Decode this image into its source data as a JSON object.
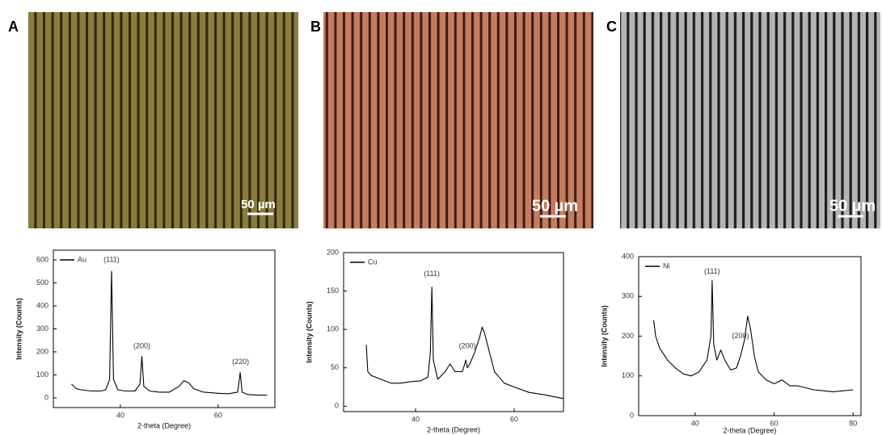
{
  "panels": [
    {
      "label": "A",
      "scale_bar": "50 µm"
    },
    {
      "label": "B",
      "scale_bar": "50 µm"
    },
    {
      "label": "C",
      "scale_bar": "50 µm"
    }
  ],
  "chart_data": [
    {
      "type": "line",
      "xlabel": "2-theta (Degree)",
      "ylabel": "Intensity (Counts)",
      "xlim": [
        26.3,
        71.6
      ],
      "ylim": [
        -42,
        642
      ],
      "xticks": [
        40,
        60
      ],
      "yticks": [
        0,
        100,
        200,
        300,
        400,
        500,
        600
      ],
      "x": [
        30,
        31,
        32,
        34,
        36,
        37,
        37.8,
        38.2,
        38.6,
        39.5,
        41,
        43,
        44,
        44.4,
        44.8,
        46,
        48,
        50,
        52,
        53,
        54,
        55,
        57,
        60,
        62,
        64,
        64.5,
        64.9,
        66,
        68,
        70
      ],
      "series": [
        {
          "name": "Au",
          "color": "#000000",
          "values": [
            60,
            40,
            35,
            30,
            30,
            35,
            80,
            550,
            80,
            35,
            30,
            30,
            60,
            180,
            50,
            30,
            25,
            25,
            50,
            75,
            65,
            40,
            25,
            20,
            18,
            25,
            110,
            25,
            15,
            12,
            12
          ]
        }
      ],
      "annotations": [
        {
          "text": "(111)",
          "x": 38.2,
          "y": 600
        },
        {
          "text": "(200)",
          "x": 44.4,
          "y": 225
        },
        {
          "text": "(220)",
          "x": 64.6,
          "y": 155
        }
      ]
    },
    {
      "type": "line",
      "xlabel": "2-theta (Degree)",
      "ylabel": "Intensity (Counts)",
      "xlim": [
        25.4,
        70
      ],
      "ylim": [
        -7,
        200
      ],
      "xticks": [
        40,
        60
      ],
      "yticks": [
        0,
        50,
        100,
        150,
        200
      ],
      "x": [
        30,
        30.3,
        31,
        33,
        35,
        37,
        39,
        41,
        42.5,
        43,
        43.3,
        43.6,
        44.5,
        46,
        47,
        48,
        49.5,
        50.2,
        50.5,
        51,
        52,
        53,
        53.5,
        54,
        55,
        56,
        58,
        60,
        63,
        66,
        70
      ],
      "series": [
        {
          "name": "Cu",
          "color": "#000000",
          "values": [
            80,
            45,
            40,
            35,
            30,
            30,
            32,
            33,
            38,
            70,
            155,
            60,
            35,
            45,
            55,
            45,
            45,
            60,
            50,
            55,
            70,
            90,
            103,
            95,
            70,
            45,
            30,
            25,
            18,
            15,
            10
          ]
        }
      ],
      "annotations": [
        {
          "text": "(111)",
          "x": 43.3,
          "y": 172
        },
        {
          "text": "(200)",
          "x": 50.5,
          "y": 78
        }
      ]
    },
    {
      "type": "line",
      "xlabel": "2-theta (Degree)",
      "ylabel": "Intensity (Counts)",
      "xlim": [
        25.7,
        82
      ],
      "ylim": [
        0,
        400
      ],
      "xticks": [
        40,
        60,
        80
      ],
      "yticks": [
        0,
        100,
        200,
        300,
        400
      ],
      "x": [
        29.5,
        30,
        31,
        33,
        35,
        37,
        39,
        41,
        43,
        44,
        44.3,
        44.7,
        45.5,
        46.5,
        47.5,
        49,
        50.5,
        51.5,
        52.5,
        53.3,
        54,
        55,
        56,
        58,
        60,
        62,
        64,
        66,
        70,
        75,
        80
      ],
      "series": [
        {
          "name": "Ni",
          "color": "#000000",
          "values": [
            240,
            200,
            170,
            140,
            120,
            105,
            100,
            110,
            140,
            200,
            340,
            180,
            140,
            165,
            140,
            115,
            120,
            150,
            190,
            250,
            220,
            150,
            110,
            90,
            80,
            90,
            75,
            75,
            65,
            60,
            65
          ]
        }
      ],
      "annotations": [
        {
          "text": "(111)",
          "x": 44.3,
          "y": 362
        },
        {
          "text": "(200)",
          "x": 51.5,
          "y": 200
        }
      ]
    }
  ]
}
